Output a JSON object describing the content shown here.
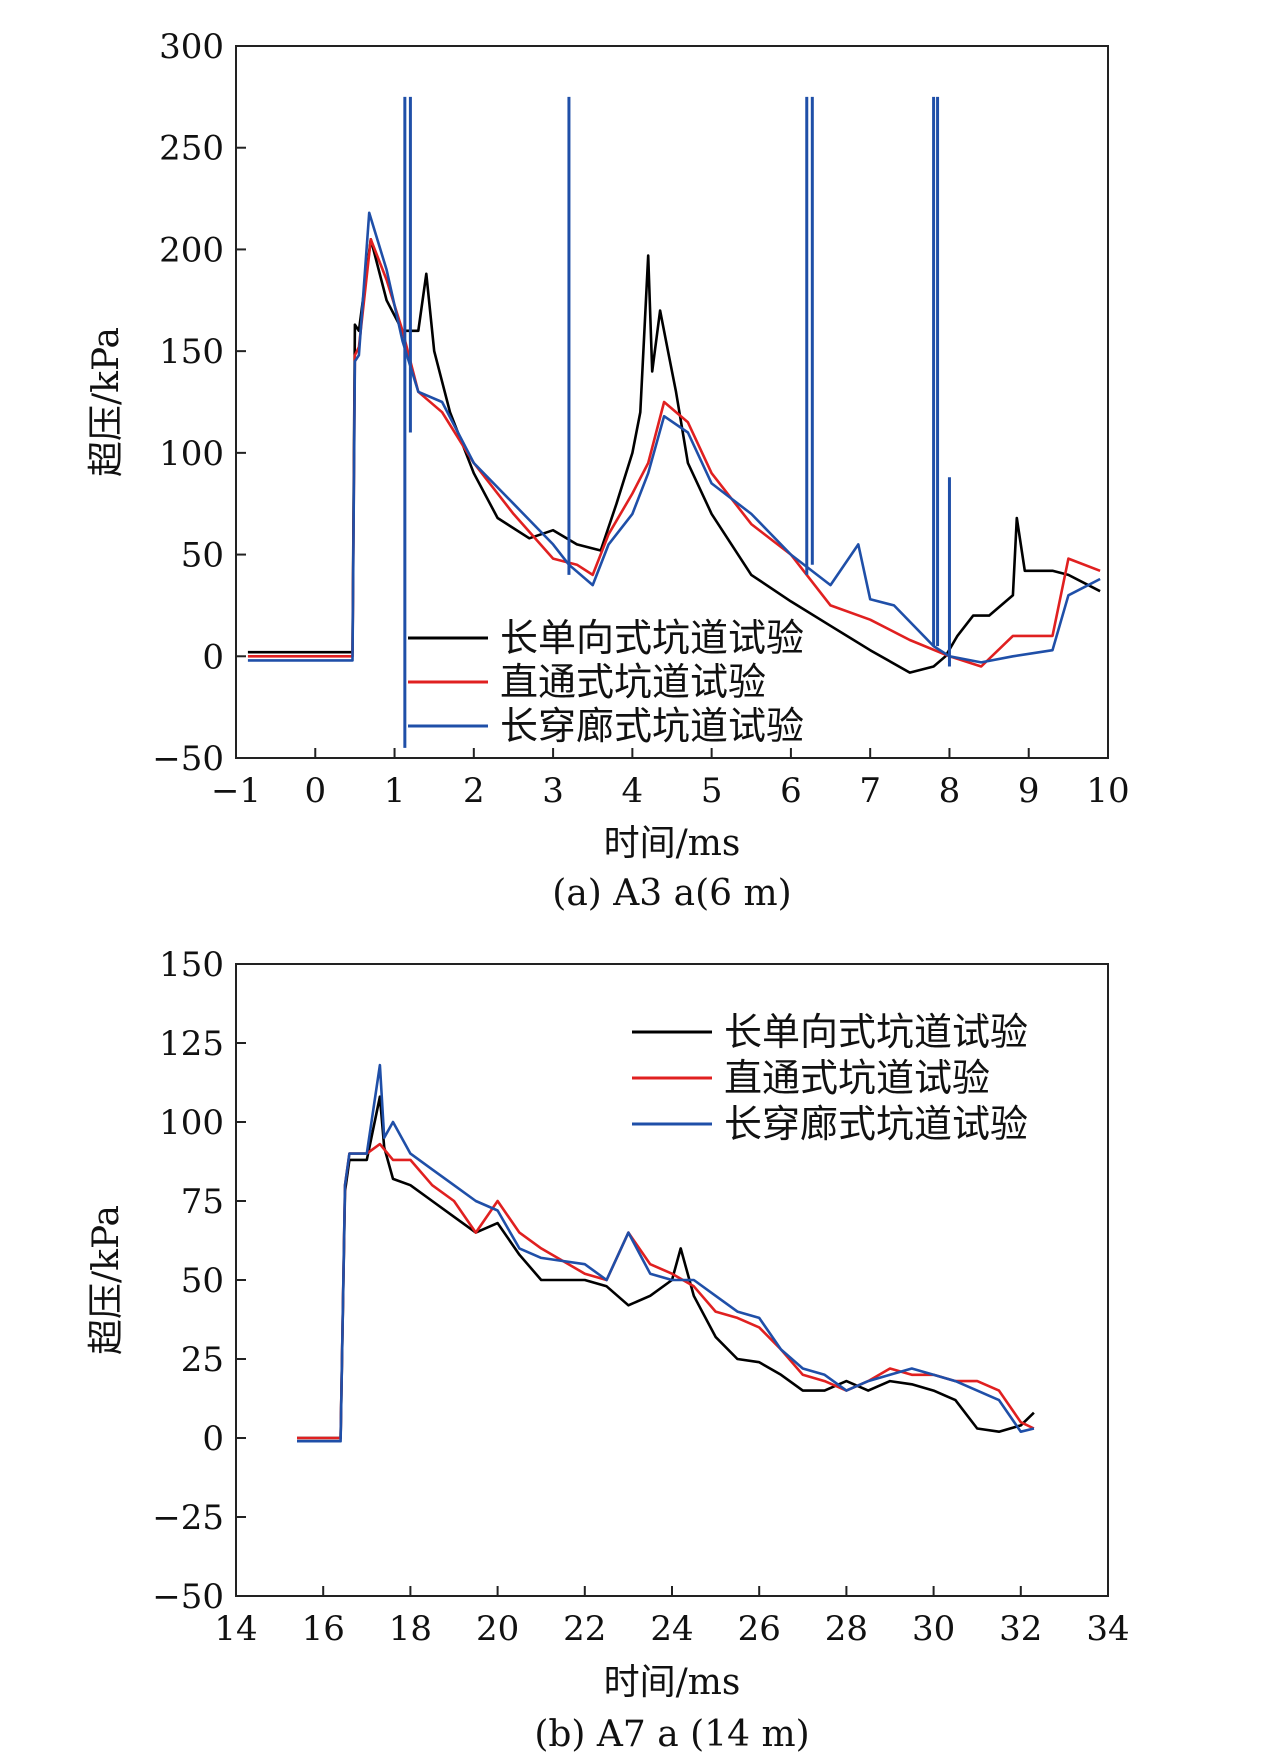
{
  "chart_data": [
    {
      "type": "line",
      "caption": "(a) A3 a(6 m)",
      "xlabel": "时间/ms",
      "ylabel": "超压/kPa",
      "xlim": [
        -1,
        10
      ],
      "ylim": [
        -50,
        300
      ],
      "xticks": [
        -1,
        0,
        1,
        2,
        3,
        4,
        5,
        6,
        7,
        8,
        9,
        10
      ],
      "yticks": [
        -50,
        0,
        50,
        100,
        150,
        200,
        250,
        300
      ],
      "xtick_labels": [
        "−1",
        "0",
        "1",
        "2",
        "3",
        "4",
        "5",
        "6",
        "7",
        "8",
        "9",
        "10"
      ],
      "ytick_labels": [
        "−50",
        "0",
        "50",
        "100",
        "150",
        "200",
        "250",
        "300"
      ],
      "legend_position": "bottom-center",
      "series": [
        {
          "name": "长单向式坑道试验",
          "color": "#000000",
          "x": [
            -0.85,
            0.0,
            0.47,
            0.5,
            0.55,
            0.7,
            0.9,
            1.1,
            1.3,
            1.4,
            1.5,
            1.7,
            2.0,
            2.3,
            2.7,
            3.0,
            3.3,
            3.6,
            3.8,
            4.0,
            4.1,
            4.2,
            4.25,
            4.35,
            4.45,
            4.55,
            4.7,
            5.0,
            5.5,
            6.0,
            6.5,
            7.0,
            7.5,
            7.8,
            7.95,
            8.1,
            8.3,
            8.5,
            8.8,
            8.85,
            8.95,
            9.3,
            9.5,
            9.9
          ],
          "y": [
            2,
            2,
            2,
            163,
            160,
            205,
            175,
            160,
            160,
            188,
            150,
            120,
            90,
            68,
            58,
            62,
            55,
            52,
            75,
            100,
            120,
            197,
            140,
            170,
            150,
            130,
            95,
            70,
            40,
            27,
            15,
            3,
            -8,
            -5,
            0,
            10,
            20,
            20,
            30,
            68,
            42,
            42,
            40,
            32
          ]
        },
        {
          "name": "直通式坑道试验",
          "color": "#e02020",
          "x": [
            -0.85,
            0.0,
            0.47,
            0.5,
            0.55,
            0.7,
            0.9,
            1.1,
            1.3,
            1.6,
            2.0,
            2.5,
            3.0,
            3.3,
            3.5,
            3.7,
            4.0,
            4.2,
            4.4,
            4.7,
            5.0,
            5.5,
            6.0,
            6.5,
            7.0,
            7.5,
            8.0,
            8.4,
            8.8,
            9.3,
            9.5,
            9.9
          ],
          "y": [
            0,
            0,
            0,
            148,
            152,
            205,
            185,
            160,
            130,
            120,
            95,
            70,
            48,
            45,
            40,
            60,
            80,
            95,
            125,
            115,
            90,
            65,
            50,
            25,
            18,
            8,
            0,
            -5,
            10,
            10,
            48,
            42
          ]
        },
        {
          "name": "长穿廊式坑道试验",
          "color": "#1f4fa8",
          "x": [
            -0.85,
            0.0,
            0.47,
            0.5,
            0.55,
            0.68,
            0.9,
            1.1,
            1.3,
            1.6,
            2.0,
            2.5,
            3.0,
            3.2,
            3.5,
            3.7,
            4.0,
            4.2,
            4.4,
            4.7,
            5.0,
            5.5,
            6.0,
            6.5,
            6.85,
            7.0,
            7.3,
            7.8,
            8.0,
            8.4,
            8.8,
            9.3,
            9.5,
            9.9
          ],
          "y": [
            -2,
            -2,
            -2,
            145,
            148,
            218,
            190,
            155,
            130,
            125,
            95,
            75,
            55,
            45,
            35,
            55,
            70,
            90,
            118,
            110,
            85,
            70,
            50,
            35,
            55,
            28,
            25,
            5,
            0,
            -3,
            0,
            3,
            30,
            38
          ]
        }
      ],
      "spikes": [
        {
          "series": "长穿廊式坑道试验",
          "x": 1.13,
          "low": -45,
          "high": 275
        },
        {
          "series": "长穿廊式坑道试验",
          "x": 1.2,
          "low": 110,
          "high": 275
        },
        {
          "series": "长穿廊式坑道试验",
          "x": 3.2,
          "low": 40,
          "high": 275
        },
        {
          "series": "长穿廊式坑道试验",
          "x": 6.2,
          "low": 40,
          "high": 275
        },
        {
          "series": "长穿廊式坑道试验",
          "x": 6.27,
          "low": 45,
          "high": 275
        },
        {
          "series": "长穿廊式坑道试验",
          "x": 7.8,
          "low": 5,
          "high": 275
        },
        {
          "series": "长穿廊式坑道试验",
          "x": 7.85,
          "low": 5,
          "high": 275
        },
        {
          "series": "长穿廊式坑道试验",
          "x": 8.0,
          "low": -5,
          "high": 88
        }
      ]
    },
    {
      "type": "line",
      "caption": "(b) A7 a (14 m)",
      "xlabel": "时间/ms",
      "ylabel": "超压/kPa",
      "xlim": [
        14,
        34
      ],
      "ylim": [
        -50,
        150
      ],
      "xticks": [
        14,
        16,
        18,
        20,
        22,
        24,
        26,
        28,
        30,
        32,
        34
      ],
      "yticks": [
        -50,
        -25,
        0,
        25,
        50,
        75,
        100,
        125,
        150
      ],
      "xtick_labels": [
        "14",
        "16",
        "18",
        "20",
        "22",
        "24",
        "26",
        "28",
        "30",
        "32",
        "34"
      ],
      "ytick_labels": [
        "−50",
        "−25",
        "0",
        "25",
        "50",
        "75",
        "100",
        "125",
        "150"
      ],
      "legend_position": "top-right",
      "series": [
        {
          "name": "长单向式坑道试验",
          "color": "#000000",
          "x": [
            15.4,
            16.0,
            16.4,
            16.5,
            16.6,
            17.0,
            17.3,
            17.4,
            17.6,
            18.0,
            18.5,
            19.0,
            19.5,
            20.0,
            20.5,
            21.0,
            22.0,
            22.5,
            23.0,
            23.5,
            24.0,
            24.2,
            24.5,
            25.0,
            25.5,
            26.0,
            26.5,
            27.0,
            27.5,
            28.0,
            28.5,
            29.0,
            29.5,
            30.0,
            30.5,
            31.0,
            31.5,
            32.0,
            32.3
          ],
          "y": [
            0,
            0,
            0,
            78,
            88,
            88,
            108,
            92,
            82,
            80,
            75,
            70,
            65,
            68,
            58,
            50,
            50,
            48,
            42,
            45,
            50,
            60,
            45,
            32,
            25,
            24,
            20,
            15,
            15,
            18,
            15,
            18,
            17,
            15,
            12,
            3,
            2,
            4,
            8
          ]
        },
        {
          "name": "直通式坑道试验",
          "color": "#e02020",
          "x": [
            15.4,
            16.0,
            16.4,
            16.5,
            16.6,
            17.0,
            17.3,
            17.6,
            18.0,
            18.5,
            19.0,
            19.5,
            20.0,
            20.5,
            21.0,
            22.0,
            22.5,
            23.0,
            23.5,
            24.0,
            24.5,
            25.0,
            25.5,
            26.0,
            26.5,
            27.0,
            27.5,
            28.0,
            28.5,
            29.0,
            29.5,
            30.0,
            30.5,
            31.0,
            31.5,
            32.0,
            32.3
          ],
          "y": [
            0,
            0,
            0,
            80,
            90,
            90,
            93,
            88,
            88,
            80,
            75,
            65,
            75,
            65,
            60,
            52,
            50,
            65,
            55,
            52,
            48,
            40,
            38,
            35,
            28,
            20,
            18,
            15,
            18,
            22,
            20,
            20,
            18,
            18,
            15,
            5,
            3
          ]
        },
        {
          "name": "长穿廊式坑道试验",
          "color": "#1f4fa8",
          "x": [
            15.4,
            16.0,
            16.4,
            16.5,
            16.6,
            17.0,
            17.3,
            17.4,
            17.6,
            18.0,
            18.5,
            19.0,
            19.5,
            20.0,
            20.5,
            21.0,
            22.0,
            22.5,
            23.0,
            23.5,
            24.0,
            24.5,
            25.0,
            25.5,
            26.0,
            26.5,
            27.0,
            27.5,
            28.0,
            28.5,
            29.0,
            29.5,
            30.0,
            30.5,
            31.0,
            31.5,
            32.0,
            32.3
          ],
          "y": [
            -1,
            -1,
            -1,
            80,
            90,
            90,
            118,
            95,
            100,
            90,
            85,
            80,
            75,
            72,
            60,
            57,
            55,
            50,
            65,
            52,
            50,
            50,
            45,
            40,
            38,
            28,
            22,
            20,
            15,
            18,
            20,
            22,
            20,
            18,
            15,
            12,
            2,
            3
          ]
        }
      ],
      "spikes": []
    }
  ]
}
